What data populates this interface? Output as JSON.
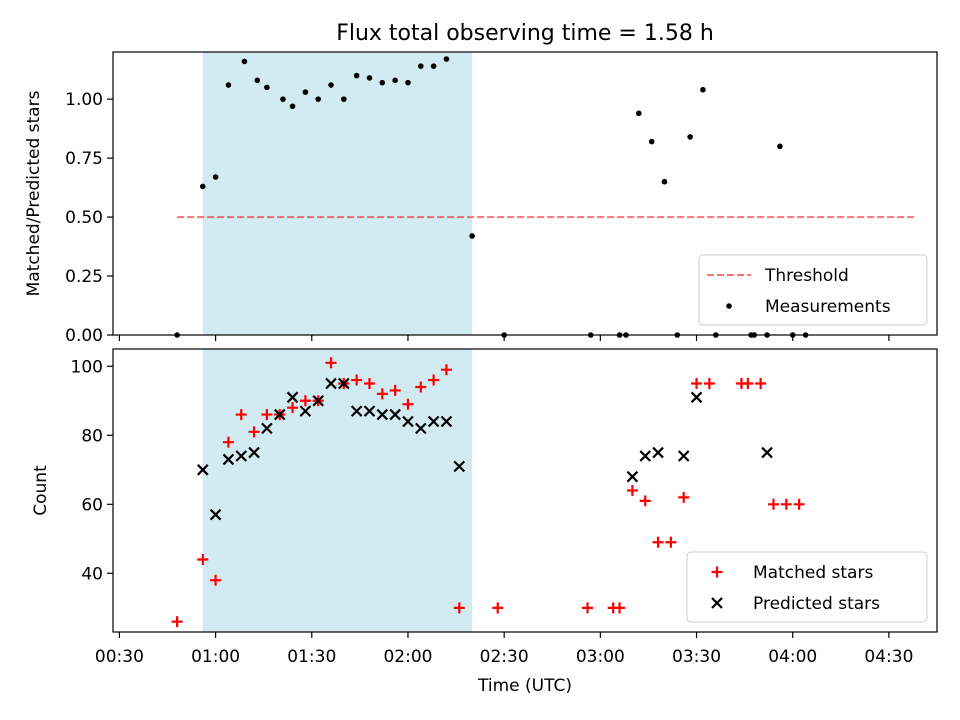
{
  "title": "Flux total observing time = 1.58 h",
  "colors": {
    "shade": "#add8e6",
    "threshold": "#ff0000",
    "matched": "#ff0000",
    "predicted": "#000000",
    "measurement": "#000000"
  },
  "chart_data": [
    {
      "type": "scatter",
      "ylabel": "Matched/Predicted stars",
      "ylim": [
        0,
        1.2
      ],
      "yticks": [
        "0.00",
        "0.25",
        "0.50",
        "0.75",
        "1.00"
      ],
      "xlim": [
        "00:28",
        "04:45"
      ],
      "shaded_region": [
        "00:56",
        "02:20"
      ],
      "threshold": {
        "name": "Threshold",
        "y": 0.5,
        "x": [
          "00:48",
          "04:38"
        ]
      },
      "legend": [
        "Threshold",
        "Measurements"
      ],
      "legend_position": "lower right",
      "series": [
        {
          "name": "Measurements",
          "points": [
            [
              "00:48",
              0
            ],
            [
              "00:56",
              0.63
            ],
            [
              "01:00",
              0.67
            ],
            [
              "01:04",
              1.06
            ],
            [
              "01:09",
              1.16
            ],
            [
              "01:13",
              1.08
            ],
            [
              "01:16",
              1.05
            ],
            [
              "01:21",
              1.0
            ],
            [
              "01:24",
              0.97
            ],
            [
              "01:28",
              1.03
            ],
            [
              "01:32",
              1.0
            ],
            [
              "01:36",
              1.06
            ],
            [
              "01:40",
              1.0
            ],
            [
              "01:44",
              1.1
            ],
            [
              "01:48",
              1.09
            ],
            [
              "01:52",
              1.07
            ],
            [
              "01:56",
              1.08
            ],
            [
              "02:00",
              1.07
            ],
            [
              "02:04",
              1.14
            ],
            [
              "02:08",
              1.14
            ],
            [
              "02:12",
              1.17
            ],
            [
              "02:20",
              0.42
            ],
            [
              "02:30",
              0
            ],
            [
              "02:57",
              0
            ],
            [
              "03:06",
              0
            ],
            [
              "03:08",
              0
            ],
            [
              "03:12",
              0.94
            ],
            [
              "03:16",
              0.82
            ],
            [
              "03:20",
              0.65
            ],
            [
              "03:24",
              0
            ],
            [
              "03:28",
              0.84
            ],
            [
              "03:32",
              1.04
            ],
            [
              "03:36",
              0
            ],
            [
              "03:47",
              0
            ],
            [
              "03:48",
              0
            ],
            [
              "03:52",
              0
            ],
            [
              "03:56",
              0.8
            ],
            [
              "04:00",
              0
            ],
            [
              "04:04",
              0
            ]
          ]
        }
      ]
    },
    {
      "type": "scatter",
      "ylabel": "Count",
      "xlabel": "Time (UTC)",
      "ylim": [
        23,
        105
      ],
      "yticks": [
        "40",
        "60",
        "80",
        "100"
      ],
      "xticks": [
        "00:30",
        "01:00",
        "01:30",
        "02:00",
        "02:30",
        "03:00",
        "03:30",
        "04:00",
        "04:30"
      ],
      "xlim": [
        "00:28",
        "04:45"
      ],
      "shaded_region": [
        "00:56",
        "02:20"
      ],
      "legend": [
        "Matched stars",
        "Predicted stars"
      ],
      "legend_position": "lower right",
      "series": [
        {
          "name": "Matched stars",
          "points": [
            [
              "00:48",
              26
            ],
            [
              "00:56",
              44
            ],
            [
              "01:00",
              38
            ],
            [
              "01:04",
              78
            ],
            [
              "01:08",
              86
            ],
            [
              "01:12",
              81
            ],
            [
              "01:16",
              86
            ],
            [
              "01:20",
              86
            ],
            [
              "01:24",
              88
            ],
            [
              "01:28",
              90
            ],
            [
              "01:32",
              90
            ],
            [
              "01:36",
              101
            ],
            [
              "01:40",
              95
            ],
            [
              "01:44",
              96
            ],
            [
              "01:48",
              95
            ],
            [
              "01:52",
              92
            ],
            [
              "01:56",
              93
            ],
            [
              "02:00",
              89
            ],
            [
              "02:04",
              94
            ],
            [
              "02:08",
              96
            ],
            [
              "02:12",
              99
            ],
            [
              "02:16",
              30
            ],
            [
              "02:28",
              30
            ],
            [
              "02:56",
              30
            ],
            [
              "03:04",
              30
            ],
            [
              "03:06",
              30
            ],
            [
              "03:10",
              64
            ],
            [
              "03:14",
              61
            ],
            [
              "03:18",
              49
            ],
            [
              "03:22",
              49
            ],
            [
              "03:26",
              62
            ],
            [
              "03:30",
              95
            ],
            [
              "03:34",
              95
            ],
            [
              "03:44",
              95
            ],
            [
              "03:46",
              95
            ],
            [
              "03:50",
              95
            ],
            [
              "03:54",
              60
            ],
            [
              "03:58",
              60
            ],
            [
              "04:02",
              60
            ]
          ]
        },
        {
          "name": "Predicted stars",
          "points": [
            [
              "00:56",
              70
            ],
            [
              "01:00",
              57
            ],
            [
              "01:04",
              73
            ],
            [
              "01:08",
              74
            ],
            [
              "01:12",
              75
            ],
            [
              "01:16",
              82
            ],
            [
              "01:20",
              86
            ],
            [
              "01:24",
              91
            ],
            [
              "01:28",
              87
            ],
            [
              "01:32",
              90
            ],
            [
              "01:36",
              95
            ],
            [
              "01:40",
              95
            ],
            [
              "01:44",
              87
            ],
            [
              "01:48",
              87
            ],
            [
              "01:52",
              86
            ],
            [
              "01:56",
              86
            ],
            [
              "02:00",
              84
            ],
            [
              "02:04",
              82
            ],
            [
              "02:08",
              84
            ],
            [
              "02:12",
              84
            ],
            [
              "02:16",
              71
            ],
            [
              "03:10",
              68
            ],
            [
              "03:14",
              74
            ],
            [
              "03:18",
              75
            ],
            [
              "03:26",
              74
            ],
            [
              "03:30",
              91
            ],
            [
              "03:52",
              75
            ]
          ]
        }
      ]
    }
  ]
}
